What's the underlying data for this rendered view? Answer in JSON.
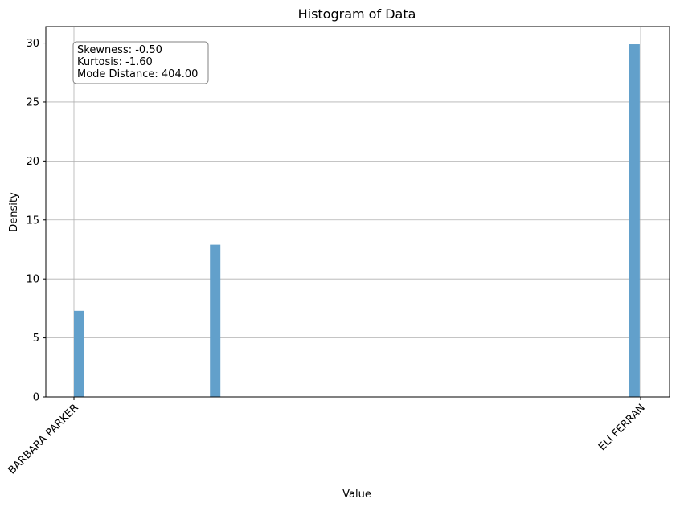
{
  "chart_data": {
    "type": "bar",
    "title": "Histogram of Data",
    "xlabel": "Value",
    "ylabel": "Density",
    "ylim": [
      0,
      31.4
    ],
    "yticks": [
      0,
      5,
      10,
      15,
      20,
      25,
      30
    ],
    "xtick_labels": [
      "BARBARA PARKER",
      "ELI FERRAN"
    ],
    "bars": [
      {
        "x": 0.0,
        "value": 7.3
      },
      {
        "x": 0.24,
        "value": 12.9
      },
      {
        "x": 0.98,
        "value": 29.9
      }
    ],
    "grid": true,
    "bar_color": "#62a0cb",
    "stats_box": {
      "lines": [
        "Skewness: -0.50",
        "Kurtosis: -1.60",
        "Mode Distance: 404.00"
      ],
      "placement": "top-left"
    }
  }
}
